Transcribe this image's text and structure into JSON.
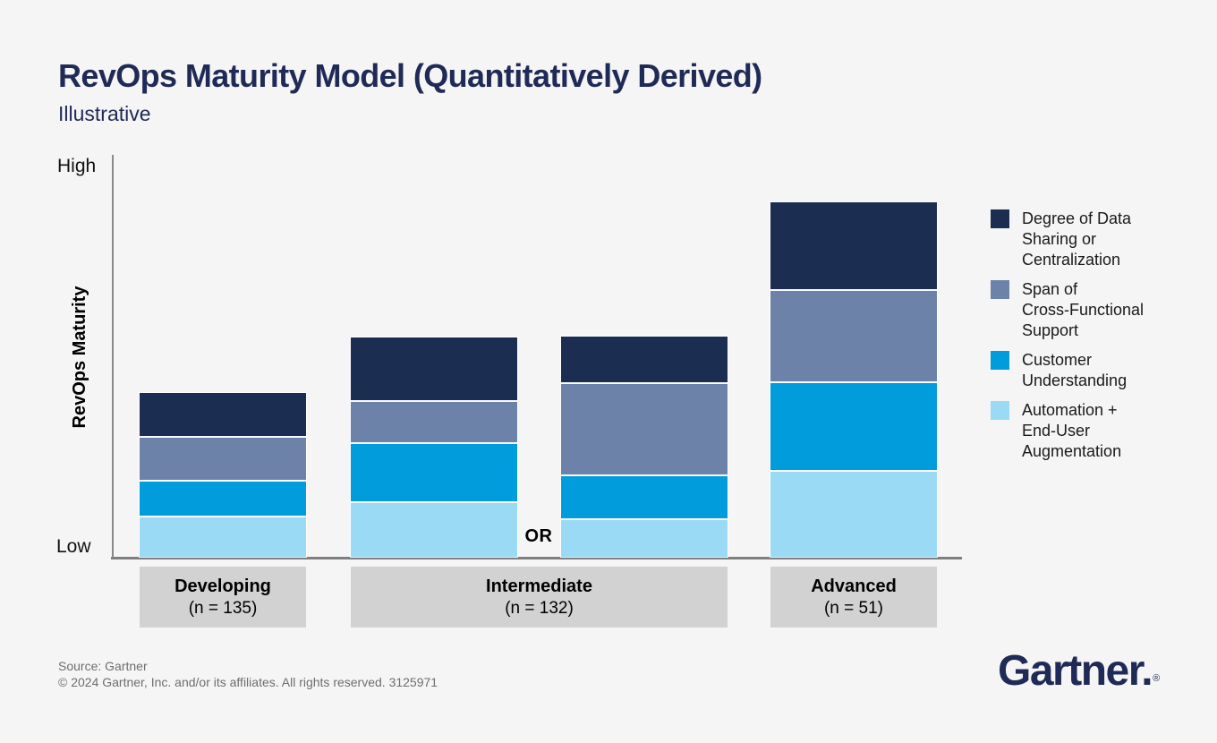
{
  "header": {
    "title": "RevOps Maturity Model (Quantitatively Derived)",
    "subtitle": "Illustrative"
  },
  "chart_data": {
    "type": "bar",
    "stacked": true,
    "orientation": "vertical",
    "title": "RevOps Maturity Model (Quantitatively Derived)",
    "subtitle": "Illustrative",
    "xlabel": "",
    "ylabel": "RevOps Maturity",
    "y_axis_ticks": [
      "High",
      "Low"
    ],
    "ylim": [
      0,
      100
    ],
    "grid": false,
    "legend_position": "right",
    "value_note": "qualitative maturity units estimated from bar heights; 0-100 spans the Low-to-High axis",
    "bars": [
      {
        "group": "Developing",
        "group_sublabel": "(n = 135)"
      },
      {
        "group": "Intermediate",
        "group_sublabel": "(n = 132)"
      },
      {
        "group": "Intermediate",
        "group_sublabel": "(n = 132)"
      },
      {
        "group": "Advanced",
        "group_sublabel": "(n = 51)"
      }
    ],
    "series_order": "top-to-bottom",
    "series": [
      {
        "name": "Degree of Data Sharing or Centralization",
        "color": "#1C2D52",
        "values": [
          10.7,
          15.6,
          11.4,
          21.7
        ]
      },
      {
        "name": "Span of Cross-Functional Support",
        "color": "#6D82A8",
        "values": [
          10.9,
          10.5,
          23.0,
          23.0
        ]
      },
      {
        "name": "Customer Understanding",
        "color": "#009CDB",
        "values": [
          8.9,
          14.7,
          10.9,
          22.1
        ]
      },
      {
        "name": "Automation + End-User Augmentation",
        "color": "#9BDAF5",
        "values": [
          10.3,
          13.8,
          9.6,
          21.7
        ]
      }
    ],
    "annotations": [
      {
        "text": "OR",
        "between_bars": [
          2,
          3
        ]
      }
    ]
  },
  "axis": {
    "high": "High",
    "low": "Low",
    "ylabel": "RevOps Maturity"
  },
  "groups": [
    {
      "label": "Developing",
      "sublabel": "(n = 135)"
    },
    {
      "label": "Intermediate",
      "sublabel": "(n = 132)"
    },
    {
      "label": "Advanced",
      "sublabel": "(n = 51)"
    }
  ],
  "or_label": "OR",
  "legend": {
    "items": [
      {
        "color": "#1C2D52",
        "lines": [
          "Degree of Data",
          "Sharing or",
          "Centralization"
        ]
      },
      {
        "color": "#6D82A8",
        "lines": [
          "Span of",
          "Cross-Functional",
          "Support"
        ]
      },
      {
        "color": "#009CDB",
        "lines": [
          "Customer",
          "Understanding"
        ]
      },
      {
        "color": "#9BDAF5",
        "lines": [
          "Automation +",
          "End-User",
          "Augmentation"
        ]
      }
    ]
  },
  "footer": {
    "source": "Source: Gartner",
    "copyright": "© 2024 Gartner, Inc. and/or its affiliates. All rights reserved. 3125971"
  },
  "logo": {
    "text": "Gartner",
    "period": ".",
    "registered": "®"
  },
  "colors": {
    "background": "#F5F5F5",
    "title": "#1F2A56",
    "axis": "#7F7F7F",
    "group_box": "#D2D2D2",
    "navy": "#1C2D52",
    "slate_blue": "#6D82A8",
    "blue": "#009CDB",
    "light_blue": "#9BDAF5"
  }
}
